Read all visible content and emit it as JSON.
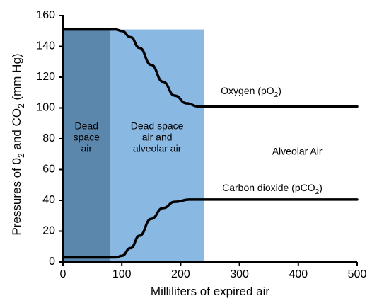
{
  "chart_data": {
    "type": "line",
    "xlabel": "Milliliters of expired air",
    "ylabel": {
      "parts": [
        "Pressures of 0",
        "2",
        " and CO",
        "2",
        " (mm Hg)"
      ]
    },
    "xlim": [
      0,
      500
    ],
    "ylim": [
      0,
      160
    ],
    "xticks": [
      0,
      100,
      200,
      300,
      400,
      500
    ],
    "yticks": [
      0,
      20,
      40,
      60,
      80,
      100,
      120,
      140,
      160
    ],
    "grid": false,
    "regions": [
      {
        "x": [
          0,
          80
        ],
        "label_lines": [
          "Dead",
          "space",
          "air"
        ],
        "color": "#5b87ad"
      },
      {
        "x": [
          80,
          240
        ],
        "label_lines": [
          "Dead space",
          "air and",
          "alveolar air"
        ],
        "color": "#89b8e2"
      },
      {
        "x": [
          240,
          500
        ],
        "label_lines": [
          "Alveolar Air"
        ],
        "color": "#ffffff"
      }
    ],
    "series": [
      {
        "name": "Oxygen (pO2)",
        "label_parts": [
          "Oxygen (pO",
          "2",
          ")"
        ],
        "color": "#000000",
        "points": [
          [
            0,
            151
          ],
          [
            50,
            151
          ],
          [
            90,
            151
          ],
          [
            100,
            150
          ],
          [
            115,
            146
          ],
          [
            130,
            139
          ],
          [
            150,
            128
          ],
          [
            170,
            117
          ],
          [
            190,
            108
          ],
          [
            210,
            103
          ],
          [
            230,
            101
          ],
          [
            260,
            101
          ],
          [
            350,
            101
          ],
          [
            420,
            101
          ],
          [
            500,
            101
          ]
        ]
      },
      {
        "name": "Carbon dioxide (pCO2)",
        "label_parts": [
          "Carbon dioxide (pCO",
          "2",
          ")"
        ],
        "color": "#000000",
        "points": [
          [
            0,
            3
          ],
          [
            50,
            3
          ],
          [
            90,
            3
          ],
          [
            100,
            4
          ],
          [
            115,
            9
          ],
          [
            130,
            17
          ],
          [
            150,
            28
          ],
          [
            170,
            35
          ],
          [
            190,
            39
          ],
          [
            215,
            40.5
          ],
          [
            240,
            40.5
          ],
          [
            350,
            40.5
          ],
          [
            420,
            40.5
          ],
          [
            500,
            40.5
          ]
        ]
      }
    ]
  }
}
